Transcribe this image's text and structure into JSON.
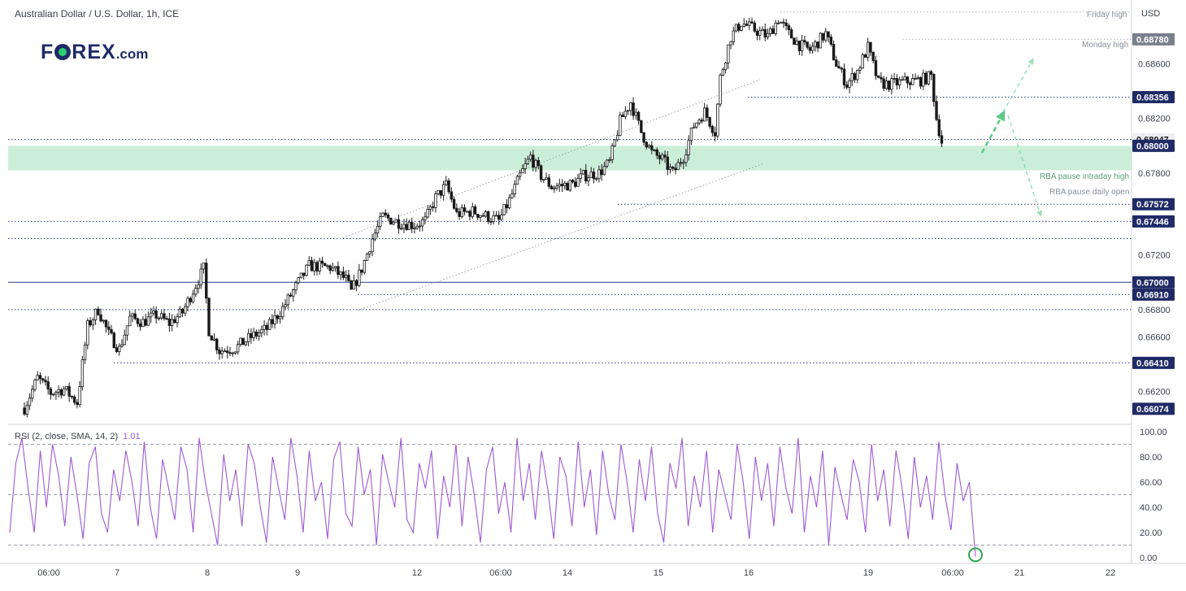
{
  "header": {
    "symbol_title": "Australian Dollar / U.S. Dollar, 1h, ICE",
    "currency": "USD"
  },
  "logo": {
    "brand": "F",
    "brand_rest": "REX",
    "suffix": ".com"
  },
  "annotations": {
    "friday_high": "Friday high",
    "monday_high": "Monday high",
    "rba_intraday_high": "RBA pause intraday high",
    "rba_daily_open": "RBA pause daily open"
  },
  "rsi": {
    "label": "RSI (2, close, SMA, 14, 2)",
    "value": "1.01",
    "levels": [
      "100.00",
      "80.00",
      "60.00",
      "40.00",
      "20.00",
      "0.00"
    ]
  },
  "colors": {
    "candle": "#1a1a1a",
    "zone": "#b9e8cc",
    "rsi_line": "#9c59d1",
    "arrow": "#5cc98a",
    "level_line": "#2a3a8a",
    "price_tag": "#1f2a66"
  },
  "chart_data": {
    "type": "candlestick",
    "price_axis": {
      "ylim": [
        0.6596,
        0.6902
      ],
      "tick_labels": [
        "0.68600",
        "0.68200",
        "0.67800",
        "0.67200",
        "0.66800",
        "0.66600",
        "0.66200"
      ],
      "tick_values": [
        0.686,
        0.682,
        0.678,
        0.672,
        0.668,
        0.666,
        0.662
      ]
    },
    "time_axis": {
      "labels": [
        "06:00",
        "7",
        "8",
        "9",
        "12",
        "06:00",
        "14",
        "15",
        "16",
        "19",
        "06:00",
        "21",
        "22"
      ]
    },
    "price_tags": [
      {
        "label": "0.68780",
        "value": 0.6878,
        "style": "gray"
      },
      {
        "label": "0.68356",
        "value": 0.68356,
        "style": "blue"
      },
      {
        "label": "0.68047",
        "value": 0.68047,
        "style": "light"
      },
      {
        "label": "0.68000",
        "value": 0.68,
        "style": "blue"
      },
      {
        "label": "0.67572",
        "value": 0.67572,
        "style": "blue"
      },
      {
        "label": "0.67446",
        "value": 0.67446,
        "style": "blue"
      },
      {
        "label": "0.67000",
        "value": 0.67,
        "style": "blue"
      },
      {
        "label": "0.66910",
        "value": 0.6691,
        "style": "blue"
      },
      {
        "label": "0.66410",
        "value": 0.6641,
        "style": "blue"
      },
      {
        "label": "0.66074",
        "value": 0.66074,
        "style": "blue"
      }
    ],
    "horizontal_levels": [
      0.6898,
      0.6878,
      0.68356,
      0.68047,
      0.67572,
      0.67446,
      0.6732,
      0.67,
      0.6691,
      0.668,
      0.6641
    ],
    "support_zone": [
      0.6782,
      0.68
    ],
    "close_path": [
      [
        0,
        0.6608
      ],
      [
        5,
        0.663
      ],
      [
        10,
        0.6619
      ],
      [
        15,
        0.6622
      ],
      [
        20,
        0.6612
      ],
      [
        24,
        0.6668
      ],
      [
        28,
        0.668
      ],
      [
        32,
        0.6662
      ],
      [
        36,
        0.6651
      ],
      [
        40,
        0.6674
      ],
      [
        45,
        0.6671
      ],
      [
        50,
        0.6676
      ],
      [
        55,
        0.667
      ],
      [
        60,
        0.6678
      ],
      [
        66,
        0.6702
      ],
      [
        68,
        0.671
      ],
      [
        70,
        0.6665
      ],
      [
        74,
        0.665
      ],
      [
        80,
        0.6652
      ],
      [
        86,
        0.666
      ],
      [
        92,
        0.6666
      ],
      [
        98,
        0.6681
      ],
      [
        104,
        0.67
      ],
      [
        108,
        0.6712
      ],
      [
        116,
        0.6711
      ],
      [
        122,
        0.6702
      ],
      [
        124,
        0.6693
      ],
      [
        128,
        0.671
      ],
      [
        132,
        0.6732
      ],
      [
        136,
        0.6748
      ],
      [
        142,
        0.6744
      ],
      [
        148,
        0.6742
      ],
      [
        152,
        0.6745
      ],
      [
        156,
        0.6762
      ],
      [
        160,
        0.6771
      ],
      [
        164,
        0.675
      ],
      [
        170,
        0.6752
      ],
      [
        176,
        0.6748
      ],
      [
        180,
        0.6745
      ],
      [
        184,
        0.676
      ],
      [
        188,
        0.6778
      ],
      [
        192,
        0.6792
      ],
      [
        196,
        0.6778
      ],
      [
        200,
        0.677
      ],
      [
        204,
        0.6771
      ],
      [
        208,
        0.6772
      ],
      [
        212,
        0.6778
      ],
      [
        218,
        0.678
      ],
      [
        222,
        0.6788
      ],
      [
        226,
        0.6818
      ],
      [
        230,
        0.6832
      ],
      [
        234,
        0.681
      ],
      [
        238,
        0.6795
      ],
      [
        242,
        0.679
      ],
      [
        246,
        0.678
      ],
      [
        250,
        0.6792
      ],
      [
        254,
        0.6815
      ],
      [
        258,
        0.6825
      ],
      [
        262,
        0.681
      ],
      [
        264,
        0.685
      ],
      [
        268,
        0.688
      ],
      [
        272,
        0.689
      ],
      [
        276,
        0.6886
      ],
      [
        282,
        0.688
      ],
      [
        286,
        0.6893
      ],
      [
        290,
        0.6882
      ],
      [
        294,
        0.6874
      ],
      [
        298,
        0.687
      ],
      [
        304,
        0.6882
      ],
      [
        308,
        0.686
      ],
      [
        312,
        0.6845
      ],
      [
        316,
        0.6855
      ],
      [
        320,
        0.6872
      ],
      [
        324,
        0.6846
      ],
      [
        328,
        0.6845
      ],
      [
        334,
        0.6847
      ],
      [
        340,
        0.6848
      ],
      [
        344,
        0.6851
      ],
      [
        346,
        0.682
      ],
      [
        348,
        0.6803
      ]
    ],
    "rsi_values": [
      20,
      75,
      95,
      55,
      20,
      85,
      40,
      90,
      65,
      25,
      80,
      50,
      15,
      75,
      88,
      35,
      20,
      70,
      45,
      85,
      60,
      25,
      92,
      40,
      15,
      78,
      55,
      30,
      88,
      70,
      20,
      95,
      60,
      35,
      10,
      82,
      45,
      70,
      25,
      90,
      75,
      40,
      12,
      80,
      55,
      30,
      95,
      65,
      20,
      85,
      45,
      60,
      15,
      78,
      92,
      35,
      25,
      88,
      50,
      70,
      10,
      82,
      60,
      40,
      95,
      30,
      20,
      75,
      55,
      85,
      15,
      65,
      40,
      90,
      25,
      80,
      50,
      12,
      70,
      88,
      35,
      60,
      20,
      95,
      45,
      75,
      30,
      85,
      55,
      15,
      80,
      65,
      25,
      92,
      40,
      70,
      18,
      85,
      50,
      30,
      90,
      60,
      20,
      78,
      45,
      88,
      35,
      12,
      75,
      55,
      95,
      25,
      65,
      40,
      85,
      20,
      70,
      50,
      30,
      90,
      60,
      15,
      80,
      45,
      75,
      25,
      88,
      55,
      35,
      95,
      20,
      65,
      40,
      85,
      10,
      72,
      50,
      30,
      78,
      60,
      20,
      90,
      45,
      70,
      25,
      85,
      55,
      15,
      80,
      40,
      65,
      30,
      92,
      50,
      22,
      75,
      45,
      60,
      1
    ]
  }
}
